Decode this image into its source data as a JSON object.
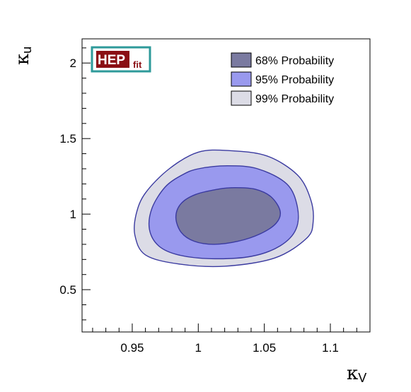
{
  "chart_data": {
    "type": "contour",
    "xlabel": "κ",
    "xlabel_sub": "V",
    "ylabel": "κ",
    "ylabel_sub": "u",
    "xlim": [
      0.912,
      1.13
    ],
    "ylim": [
      0.22,
      2.16
    ],
    "x_ticks": [
      {
        "value": 0.95,
        "label": "0.95"
      },
      {
        "value": 1.0,
        "label": "1"
      },
      {
        "value": 1.05,
        "label": "1.05"
      },
      {
        "value": 1.1,
        "label": "1.1"
      }
    ],
    "y_ticks": [
      {
        "value": 0.5,
        "label": "0.5"
      },
      {
        "value": 1.0,
        "label": "1"
      },
      {
        "value": 1.5,
        "label": "1.5"
      },
      {
        "value": 2.0,
        "label": "2"
      }
    ],
    "series": [
      {
        "name": "99% Probability",
        "color": "#dcdce6",
        "points": [
          [
            1.0,
            1.41
          ],
          [
            1.024,
            1.42
          ],
          [
            1.052,
            1.385
          ],
          [
            1.075,
            1.26
          ],
          [
            1.085,
            1.1
          ],
          [
            1.087,
            0.95
          ],
          [
            1.082,
            0.84
          ],
          [
            1.058,
            0.71
          ],
          [
            1.02,
            0.655
          ],
          [
            0.985,
            0.67
          ],
          [
            0.96,
            0.73
          ],
          [
            0.952,
            0.86
          ],
          [
            0.953,
            1.0
          ],
          [
            0.96,
            1.14
          ],
          [
            0.978,
            1.3
          ]
        ]
      },
      {
        "name": "95% Probability",
        "color": "#9999ee",
        "points": [
          [
            1.0,
            1.3
          ],
          [
            1.022,
            1.32
          ],
          [
            1.045,
            1.3
          ],
          [
            1.067,
            1.2
          ],
          [
            1.075,
            1.05
          ],
          [
            1.074,
            0.9
          ],
          [
            1.062,
            0.79
          ],
          [
            1.04,
            0.72
          ],
          [
            1.01,
            0.705
          ],
          [
            0.985,
            0.73
          ],
          [
            0.97,
            0.79
          ],
          [
            0.963,
            0.9
          ],
          [
            0.965,
            1.04
          ],
          [
            0.975,
            1.18
          ],
          [
            0.988,
            1.26
          ]
        ]
      },
      {
        "name": "68% Probability",
        "color": "#7a7aa0",
        "points": [
          [
            1.015,
            1.165
          ],
          [
            1.028,
            1.175
          ],
          [
            1.043,
            1.165
          ],
          [
            1.055,
            1.115
          ],
          [
            1.062,
            1.02
          ],
          [
            1.059,
            0.94
          ],
          [
            1.047,
            0.87
          ],
          [
            1.03,
            0.82
          ],
          [
            1.012,
            0.8
          ],
          [
            0.997,
            0.82
          ],
          [
            0.987,
            0.88
          ],
          [
            0.983,
            0.98
          ],
          [
            0.987,
            1.07
          ],
          [
            0.998,
            1.13
          ]
        ]
      }
    ],
    "legend": [
      {
        "label": "68% Probability",
        "color": "#7a7aa0"
      },
      {
        "label": "95% Probability",
        "color": "#9999ee"
      },
      {
        "label": "99% Probability",
        "color": "#dcdce6"
      }
    ],
    "legend_position": "top-right",
    "contour_line_color": "#3a3aa0",
    "grid": false
  },
  "logo": {
    "main": "HEP",
    "sub": "fit",
    "main_bg": "#8a0f14",
    "border": "#2e9a9a",
    "sub_color": "#8a0f14"
  }
}
